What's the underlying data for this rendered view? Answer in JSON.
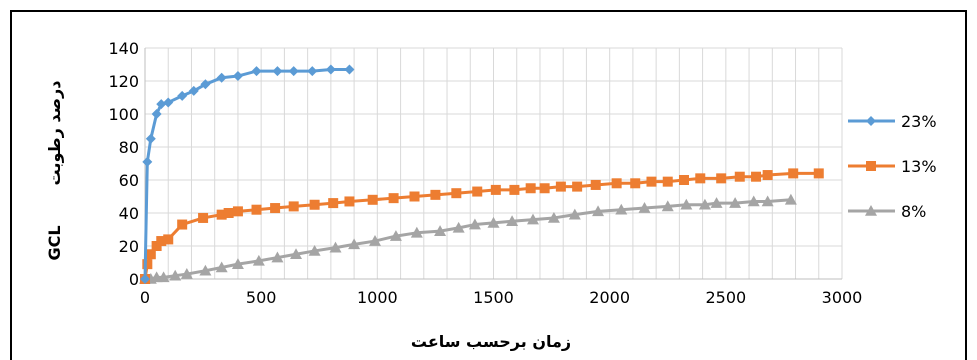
{
  "chart_data": {
    "type": "line",
    "xlabel": "زمان برحسب ساعت",
    "ylabel_text": "درصد  رطوبت",
    "ylabel_abbr": "GCL",
    "xlim": [
      0,
      3000
    ],
    "ylim": [
      0,
      140
    ],
    "xticks": [
      "0",
      "500",
      "1000",
      "1500",
      "2000",
      "2500",
      "3000"
    ],
    "yticks": [
      "0",
      "20",
      "40",
      "60",
      "80",
      "100",
      "120",
      "140"
    ],
    "grid": true,
    "legend_position": "right",
    "series": [
      {
        "name": "23%",
        "color": "#5b9bd5",
        "marker": "diamond",
        "x": [
          0,
          10,
          25,
          50,
          70,
          100,
          160,
          210,
          260,
          330,
          400,
          480,
          570,
          640,
          720,
          800,
          880
        ],
        "y": [
          0,
          71,
          85,
          100,
          106,
          107,
          111,
          114,
          118,
          122,
          123,
          126,
          126,
          126,
          126,
          127,
          127
        ]
      },
      {
        "name": "13%",
        "color": "#ed7d31",
        "marker": "square",
        "x": [
          0,
          10,
          25,
          50,
          70,
          100,
          160,
          250,
          330,
          360,
          400,
          480,
          560,
          640,
          730,
          810,
          880,
          980,
          1070,
          1160,
          1250,
          1340,
          1430,
          1510,
          1590,
          1660,
          1720,
          1790,
          1860,
          1940,
          2030,
          2110,
          2180,
          2250,
          2320,
          2390,
          2480,
          2560,
          2630,
          2680,
          2790,
          2900
        ],
        "y": [
          0,
          9,
          15,
          20,
          23,
          24,
          33,
          37,
          39,
          40,
          41,
          42,
          43,
          44,
          45,
          46,
          47,
          48,
          49,
          50,
          51,
          52,
          53,
          54,
          54,
          55,
          55,
          56,
          56,
          57,
          58,
          58,
          59,
          59,
          60,
          61,
          61,
          62,
          62,
          63,
          64,
          64
        ]
      },
      {
        "name": "8%",
        "color": "#a5a5a5",
        "marker": "triangle",
        "x": [
          0,
          25,
          50,
          80,
          130,
          180,
          260,
          330,
          400,
          490,
          570,
          650,
          730,
          820,
          900,
          990,
          1080,
          1170,
          1270,
          1350,
          1420,
          1500,
          1580,
          1670,
          1760,
          1850,
          1950,
          2050,
          2150,
          2250,
          2330,
          2410,
          2460,
          2540,
          2620,
          2680,
          2780
        ],
        "y": [
          0,
          0,
          1,
          1,
          2,
          3,
          5,
          7,
          9,
          11,
          13,
          15,
          17,
          19,
          21,
          23,
          26,
          28,
          29,
          31,
          33,
          34,
          35,
          36,
          37,
          39,
          41,
          42,
          43,
          44,
          45,
          45,
          46,
          46,
          47,
          47,
          48
        ]
      }
    ]
  }
}
